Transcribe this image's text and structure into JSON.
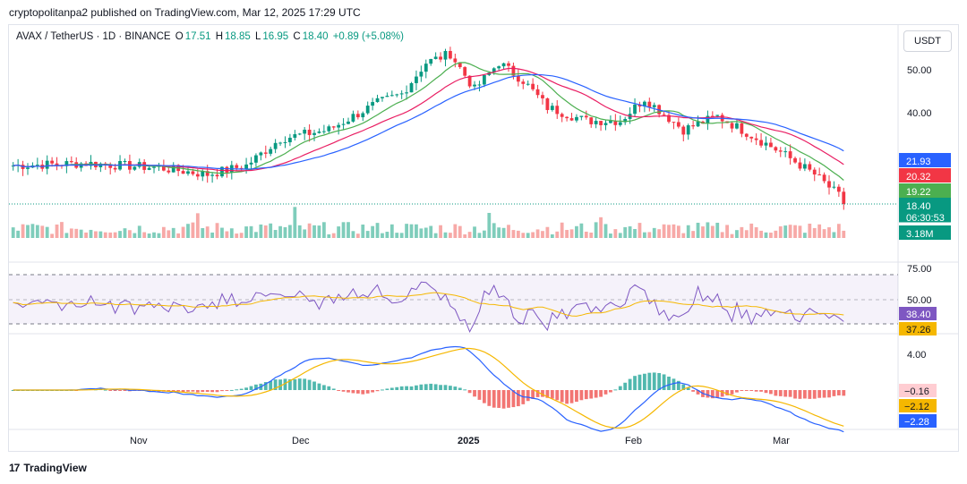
{
  "publisher_line": "cryptopolitanpa2 published on TradingView.com, Mar 12, 2025 17:29 UTC",
  "footer": {
    "brand": "TradingView"
  },
  "currency_button": "USDT",
  "legend": {
    "symbol": "AVAX / TetherUS · 1D · BINANCE",
    "open_label": "O",
    "open": "17.51",
    "high_label": "H",
    "high": "18.85",
    "low_label": "L",
    "low": "16.95",
    "close_label": "C",
    "close": "18.40",
    "change": "+0.89 (+5.08%)"
  },
  "colors": {
    "up": "#089981",
    "down": "#f23645",
    "ma_fast": "#4caf50",
    "ma_mid": "#e91e63",
    "ma_slow": "#2962ff",
    "rsi": "#7e57c2",
    "signal": "#f5b700"
  },
  "price_axis": {
    "ticks": [
      "50.00",
      "40.00"
    ]
  },
  "price_labels": [
    {
      "text": "21.93",
      "color": "#2962ff"
    },
    {
      "text": "20.32",
      "color": "#f23645"
    },
    {
      "text": "19.22",
      "color": "#4caf50"
    },
    {
      "text": "18.40",
      "color": "#089981"
    },
    {
      "text": "06:30:53",
      "color": "#089981"
    },
    {
      "text": "3.18M",
      "color": "#089981"
    }
  ],
  "rsi": {
    "ticks": [
      "75.00",
      "50.00"
    ],
    "labels": [
      {
        "text": "38.40",
        "color": "#7e57c2"
      },
      {
        "text": "37.26",
        "color": "#f5b700"
      }
    ]
  },
  "macd": {
    "ticks": [
      "4.00"
    ],
    "labels": [
      {
        "text": "−0.16",
        "color": "#ffcdd2"
      },
      {
        "text": "−2.12",
        "color": "#f5b700"
      },
      {
        "text": "−2.28",
        "color": "#2962ff"
      }
    ]
  },
  "time_axis": [
    "Nov",
    "Dec",
    "2025",
    "Feb",
    "Mar"
  ]
}
